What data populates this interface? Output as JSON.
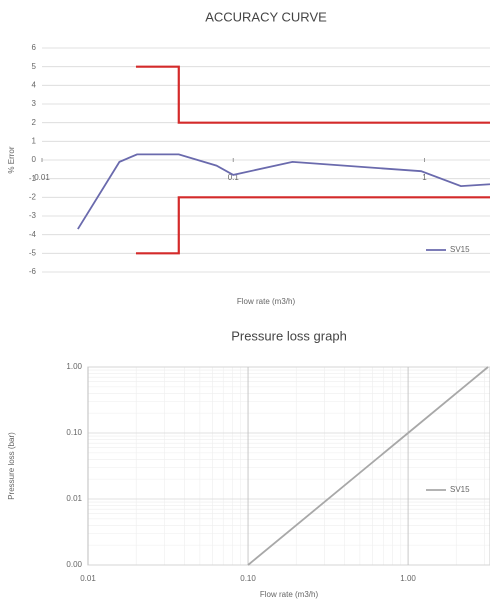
{
  "chart_data": [
    {
      "type": "line",
      "title": "ACCURACY CURVE",
      "xlabel": "Flow rate (m3/h)",
      "ylabel": "% Error",
      "xscale": "log",
      "yscale": "linear",
      "grid": "y",
      "legend": "lower right",
      "xlim": [
        0.01,
        2.2
      ],
      "ylim": [
        -6,
        6
      ],
      "xticks": [
        {
          "value": 0.01,
          "label": "0.01"
        },
        {
          "value": 0.1,
          "label": "0.1"
        },
        1
      ],
      "yticks": [
        -6,
        -5,
        -4,
        -3,
        -2,
        -1,
        0,
        1,
        2,
        3,
        4,
        5,
        6
      ],
      "series": [
        {
          "name": "SV15",
          "color": "#6a6aad",
          "x": [
            0.0154,
            0.0254,
            0.0314,
            0.0519,
            0.0817,
            0.1,
            0.204,
            0.96,
            1.55,
            2.2
          ],
          "values": [
            -3.7,
            -0.1,
            0.3,
            0.3,
            -0.3,
            -0.8,
            -0.1,
            -0.6,
            -1.4,
            -1.3
          ]
        },
        {
          "color": "#d42a2a",
          "x": [
            0.031,
            0.0519,
            0.0519,
            2.2
          ],
          "values": [
            5,
            5,
            2,
            2
          ]
        },
        {
          "color": "#d42a2a",
          "x": [
            0.031,
            0.0519,
            0.0519,
            2.2
          ],
          "values": [
            -5,
            -5,
            -2,
            -2
          ]
        }
      ]
    },
    {
      "type": "line",
      "title": "Pressure loss graph",
      "xlabel": "Flow rate (m3/h)",
      "ylabel": "Pressure loss (bar)",
      "xscale": "log",
      "yscale": "log",
      "grid": "both",
      "legend": "right",
      "xlim": [
        0.01,
        3.25
      ],
      "ylim": [
        0.001,
        1
      ],
      "xticks": [
        {
          "value": 0.01,
          "label": "0.01"
        },
        {
          "value": 0.1,
          "label": "0.10"
        },
        {
          "value": 1,
          "label": "1.00"
        }
      ],
      "yticks": [
        {
          "value": 0.001,
          "label": "0.00"
        },
        {
          "value": 0.01,
          "label": "0.01"
        },
        {
          "value": 0.1,
          "label": "0.10"
        },
        {
          "value": 1,
          "label": "1.00"
        }
      ],
      "series": [
        {
          "name": "SV15",
          "color": "#a8a8a8",
          "x": [
            0.1,
            1,
            3.16
          ],
          "values": [
            0.001,
            0.1,
            1
          ]
        }
      ]
    }
  ]
}
